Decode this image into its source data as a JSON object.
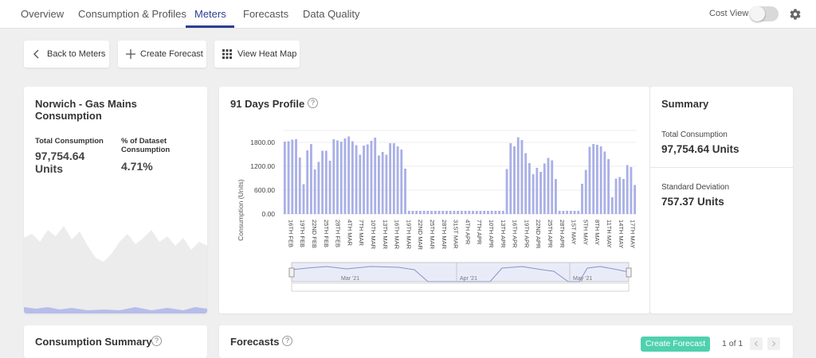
{
  "nav": {
    "tabs": [
      {
        "label": "Overview"
      },
      {
        "label": "Consumption & Profiles"
      },
      {
        "label": "Meters"
      },
      {
        "label": "Forecasts"
      },
      {
        "label": "Data Quality"
      }
    ],
    "active_tab": "Meters",
    "cost_view_label": "Cost View",
    "cost_view_on": false
  },
  "toolbar": {
    "back_label": "Back to Meters",
    "create_forecast_label": "Create Forecast",
    "heatmap_label": "View Heat Map"
  },
  "meter_card": {
    "title": "Norwich - Gas Mains Consumption",
    "total_label": "Total Consumption",
    "total_value": "97,754.64 Units",
    "pct_label": "% of Dataset Consumption",
    "pct_value": "4.71%"
  },
  "profile": {
    "title": "91 Days Profile",
    "help": "?",
    "navigator_labels": [
      "Mar '21",
      "Apr '21",
      "May '21"
    ]
  },
  "summary": {
    "title": "Summary",
    "total_label": "Total Consumption",
    "total_value": "97,754.64 Units",
    "std_label": "Standard Deviation",
    "std_value": "757.37 Units"
  },
  "consumption_summary": {
    "title": "Consumption Summary",
    "help": "?"
  },
  "forecasts": {
    "title": "Forecasts",
    "help": "?",
    "create_label": "Create Forecast",
    "pager_text": "1 of 1"
  },
  "colors": {
    "accent": "#2c3e91",
    "bar": "#a9b0e6",
    "create": "#4fd1ae"
  },
  "chart_data": {
    "type": "bar",
    "ylabel": "Consumption (Units)",
    "xlabel": "",
    "ylim": [
      0,
      2400
    ],
    "yticks": [
      0,
      600,
      1200,
      1800
    ],
    "ytick_labels": [
      "0.00",
      "600.00",
      "1200.00",
      "1800.00"
    ],
    "xtick_labels": [
      "16TH FEB",
      "19TH FEB",
      "22ND FEB",
      "25TH FEB",
      "28TH FEB",
      "4TH MAR",
      "7TH MAR",
      "10TH MAR",
      "13TH MAR",
      "16TH MAR",
      "19TH MAR",
      "22ND MAR",
      "25TH MAR",
      "28TH MAR",
      "31ST MAR",
      "4TH APR",
      "7TH APR",
      "10TH APR",
      "13TH APR",
      "16TH APR",
      "19TH APR",
      "22ND APR",
      "25TH APR",
      "28TH APR",
      "1ST MAY",
      "5TH MAY",
      "8TH MAY",
      "11TH MAY",
      "14TH MAY",
      "17TH MAY"
    ],
    "values": [
      1820,
      1830,
      1870,
      1880,
      1420,
      750,
      1600,
      1760,
      1120,
      1310,
      1590,
      1590,
      1340,
      1880,
      1850,
      1820,
      1900,
      1950,
      1830,
      1730,
      1490,
      1720,
      1750,
      1840,
      1920,
      1470,
      1560,
      1490,
      1780,
      1780,
      1700,
      1620,
      1140,
      80,
      80,
      80,
      80,
      80,
      80,
      80,
      80,
      80,
      80,
      80,
      80,
      80,
      80,
      80,
      80,
      80,
      80,
      80,
      80,
      80,
      80,
      80,
      80,
      80,
      80,
      1130,
      1780,
      1700,
      1930,
      1860,
      1530,
      1280,
      1000,
      1160,
      1060,
      1270,
      1410,
      1350,
      880,
      80,
      80,
      80,
      80,
      80,
      80,
      760,
      1110,
      1690,
      1760,
      1740,
      1700,
      1570,
      1380,
      420,
      890,
      930,
      880,
      1230,
      1180,
      730
    ]
  }
}
